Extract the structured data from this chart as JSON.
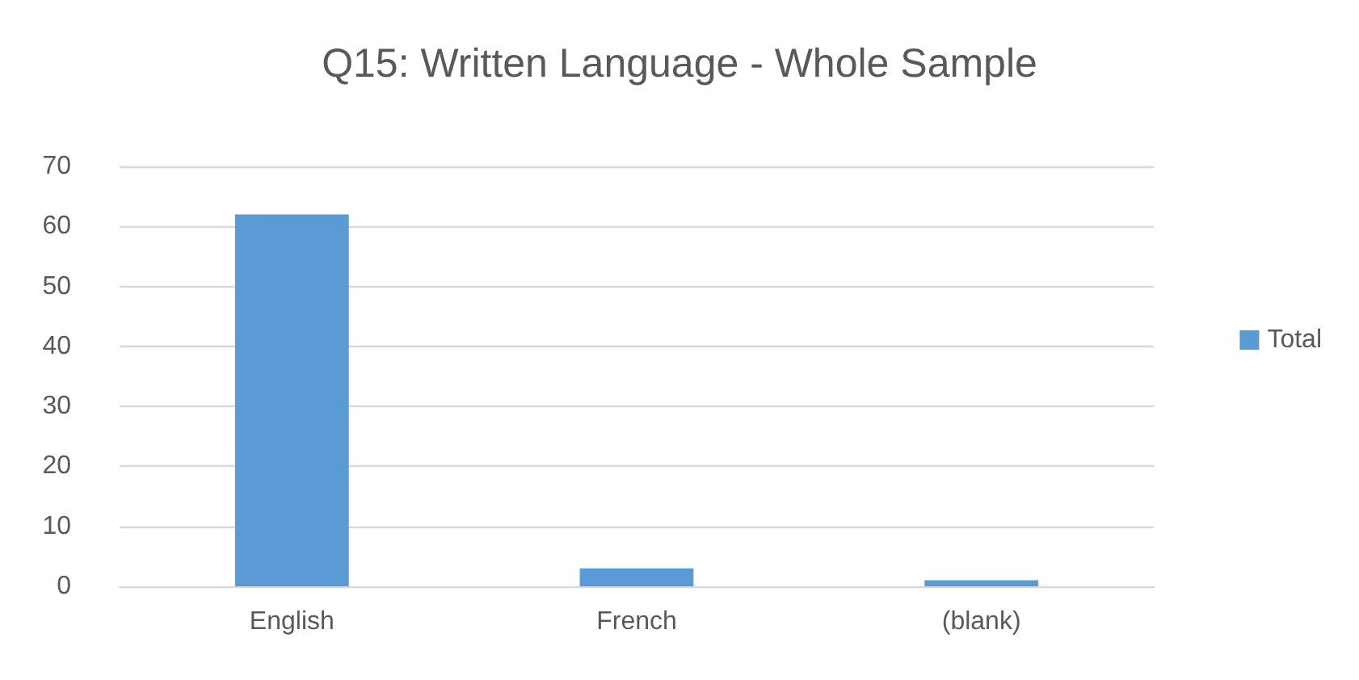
{
  "chart_data": {
    "type": "bar",
    "title": "Q15: Written Language - Whole Sample",
    "categories": [
      "English",
      "French",
      "(blank)"
    ],
    "series": [
      {
        "name": "Total",
        "color": "#5b9bd5",
        "values": [
          62,
          3,
          1
        ]
      }
    ],
    "ylim": [
      0,
      70
    ],
    "yticks": [
      0,
      10,
      20,
      30,
      40,
      50,
      60,
      70
    ],
    "grid": "y",
    "legend": "right"
  }
}
